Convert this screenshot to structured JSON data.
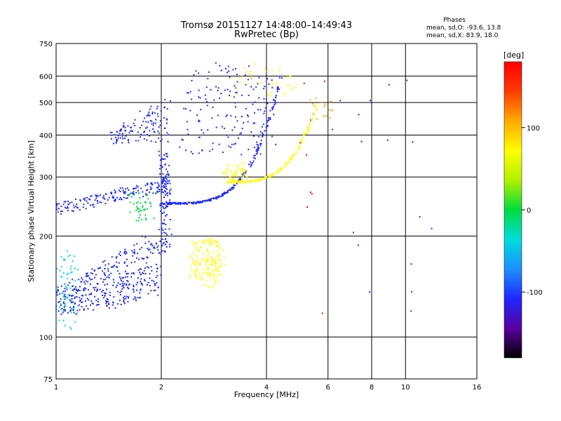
{
  "header": {
    "title_line1": "Tromsø 20151127 14:48:00–14:49:43",
    "title_line2": "RwPretec (Bp)"
  },
  "phases_box": {
    "title": "Phases",
    "line_o": "mean, sd,O: -93.6, 13.8",
    "line_x": "mean, sd,X: 83.9, 18.0"
  },
  "colorbar": {
    "unit_label": "[deg]",
    "tick_labels": [
      "100",
      "0",
      "-100"
    ],
    "tick_values": [
      100,
      0,
      -100
    ],
    "range": [
      -180,
      180
    ],
    "colors": [
      "#000000",
      "#5a00a0",
      "#1e28ff",
      "#1e90ff",
      "#00dcdc",
      "#00dc3c",
      "#b4f000",
      "#ffff00",
      "#ffaa00",
      "#ff3c00",
      "#ff0000"
    ]
  },
  "chart_data": {
    "type": "scatter",
    "title": "Tromsø 20151127 14:48:00–14:49:43",
    "subtitle": "RwPretec (Bp)",
    "xlabel": "Frequency [MHz]",
    "ylabel": "Stationary phase Virtual Height [km]",
    "x_scale": "log",
    "y_scale": "log",
    "xlim": [
      1,
      16
    ],
    "ylim": [
      75,
      750
    ],
    "x_ticks": [
      1,
      2,
      4,
      6,
      8,
      10,
      16
    ],
    "x_tick_labels": [
      "1",
      "2",
      "4",
      "6",
      "8",
      "10",
      "16"
    ],
    "y_ticks": [
      75,
      100,
      200,
      300,
      400,
      500,
      600,
      750
    ],
    "y_tick_labels": [
      "75",
      "100",
      "200",
      "300",
      "400",
      "500",
      "600",
      "750"
    ],
    "grid": true,
    "color_encoding": "phase [deg]",
    "colors": {
      "o_mode": "#1e28ff",
      "x_mode": "#ffff00",
      "green": "#00dc3c",
      "cyan": "#00dcdc",
      "red": "#ff0000",
      "orange": "#ffaa00"
    },
    "clusters": [
      {
        "color": "o_mode",
        "n": 420,
        "x": [
          1.0,
          2.0
        ],
        "y": [
          115,
          185
        ],
        "shape": "lower-E",
        "jitter": 0.06
      },
      {
        "color": "cyan",
        "n": 60,
        "x": [
          1.0,
          1.15
        ],
        "y": [
          105,
          180
        ],
        "shape": "box",
        "jitter": 0.03
      },
      {
        "color": "o_mode",
        "n": 180,
        "x": [
          1.0,
          2.1
        ],
        "y": [
          240,
          285
        ],
        "shape": "F-trace-low",
        "jitter": 0.04
      },
      {
        "color": "o_mode",
        "n": 260,
        "x": [
          2.0,
          4.4
        ],
        "y": [
          250,
          600
        ],
        "shape": "F-trace-main",
        "jitter": 0.02
      },
      {
        "color": "o_mode",
        "n": 120,
        "x": [
          1.45,
          2.1
        ],
        "y": [
          380,
          520
        ],
        "shape": "upper-box",
        "jitter": 0.04
      },
      {
        "color": "o_mode",
        "n": 110,
        "x": [
          2.0,
          2.1
        ],
        "y": [
          180,
          360
        ],
        "shape": "vertical",
        "jitter": 0.05
      },
      {
        "color": "o_mode",
        "n": 160,
        "x": [
          2.3,
          4.2
        ],
        "y": [
          350,
          650
        ],
        "shape": "box",
        "jitter": 0.05
      },
      {
        "color": "x_mode",
        "n": 170,
        "x": [
          2.4,
          3.0
        ],
        "y": [
          140,
          200
        ],
        "shape": "blob",
        "jitter": 0.05
      },
      {
        "color": "x_mode",
        "n": 200,
        "x": [
          3.1,
          5.6
        ],
        "y": [
          290,
          500
        ],
        "shape": "X-trace",
        "jitter": 0.02
      },
      {
        "color": "x_mode",
        "n": 60,
        "x": [
          3.0,
          3.5
        ],
        "y": [
          290,
          330
        ],
        "shape": "box",
        "jitter": 0.04
      },
      {
        "color": "x_mode",
        "n": 40,
        "x": [
          3.2,
          4.9
        ],
        "y": [
          520,
          650
        ],
        "shape": "box",
        "jitter": 0.05
      },
      {
        "color": "green",
        "n": 45,
        "x": [
          1.6,
          1.9
        ],
        "y": [
          220,
          270
        ],
        "shape": "box",
        "jitter": 0.05
      },
      {
        "color": "orange",
        "n": 18,
        "x": [
          5.4,
          6.2
        ],
        "y": [
          430,
          520
        ],
        "shape": "box",
        "jitter": 0.05
      },
      {
        "color": "red",
        "n": 10,
        "x": [
          5.0,
          6.3
        ],
        "y": [
          120,
          560
        ],
        "shape": "sparse",
        "jitter": 0.2
      },
      {
        "color": "o_mode",
        "n": 16,
        "x": [
          6.2,
          13.0
        ],
        "y": [
          95,
          560
        ],
        "shape": "sparse",
        "jitter": 0.3
      }
    ]
  }
}
